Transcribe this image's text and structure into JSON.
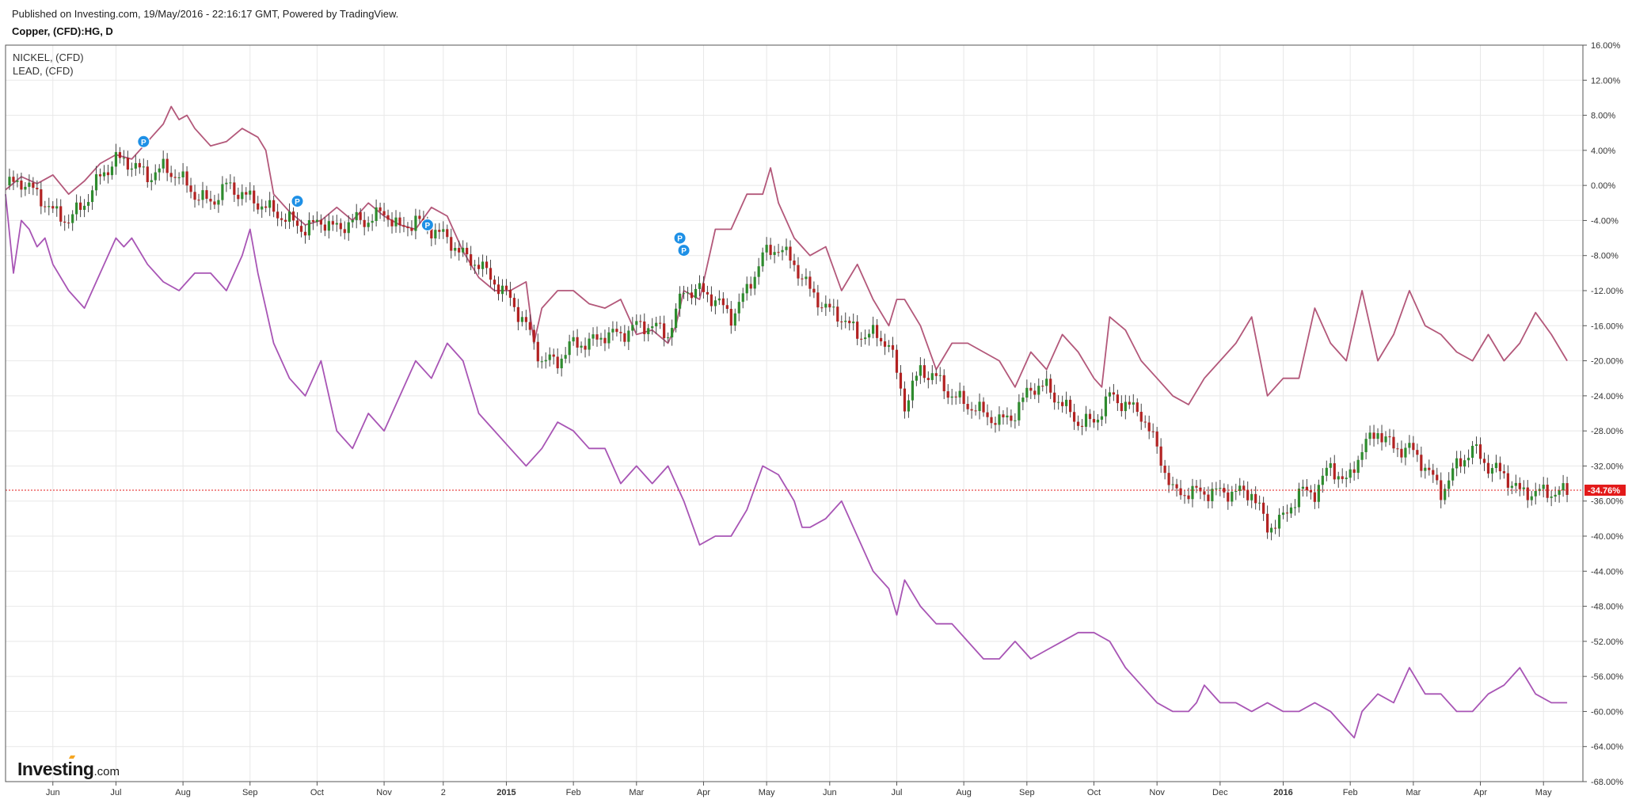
{
  "header": {
    "published": "Published on Investing.com, 19/May/2016 - 22:16:17 GMT, Powered by TradingView.",
    "symbol": "Copper, (CFD):HG, D"
  },
  "legend": [
    "NICKEL,  (CFD)",
    "LEAD,  (CFD)"
  ],
  "logo": {
    "main": "Investing",
    "suffix": ".com"
  },
  "colors": {
    "nickel": "#b3587a",
    "lead": "#a855b5",
    "candle_up": "#2e8b2e",
    "candle_down": "#b22222",
    "last_price": "#e31a1a",
    "grid": "#e8e8e8",
    "marker": "#1e90e6"
  },
  "chart_data": {
    "type": "line",
    "y_unit": "%",
    "ylim": [
      -68,
      16
    ],
    "y_ticks": [
      "16.00%",
      "12.00%",
      "8.00%",
      "4.00%",
      "0.00%",
      "-4.00%",
      "-8.00%",
      "-12.00%",
      "-16.00%",
      "-20.00%",
      "-24.00%",
      "-28.00%",
      "-32.00%",
      "-36.00%",
      "-40.00%",
      "-44.00%",
      "-48.00%",
      "-52.00%",
      "-56.00%",
      "-60.00%",
      "-64.00%",
      "-68.00%"
    ],
    "x_ticks": [
      {
        "label": "Jun",
        "t": 6,
        "bold": false
      },
      {
        "label": "Jul",
        "t": 14,
        "bold": false
      },
      {
        "label": "Aug",
        "t": 22.5,
        "bold": false
      },
      {
        "label": "Sep",
        "t": 31,
        "bold": false
      },
      {
        "label": "Oct",
        "t": 39.5,
        "bold": false
      },
      {
        "label": "Nov",
        "t": 48,
        "bold": false
      },
      {
        "label": "2",
        "t": 55.5,
        "bold": false
      },
      {
        "label": "2015",
        "t": 63.5,
        "bold": true
      },
      {
        "label": "Feb",
        "t": 72,
        "bold": false
      },
      {
        "label": "Mar",
        "t": 80,
        "bold": false
      },
      {
        "label": "Apr",
        "t": 88.5,
        "bold": false
      },
      {
        "label": "May",
        "t": 96.5,
        "bold": false
      },
      {
        "label": "Jun",
        "t": 104.5,
        "bold": false
      },
      {
        "label": "Jul",
        "t": 113,
        "bold": false
      },
      {
        "label": "Aug",
        "t": 121.5,
        "bold": false
      },
      {
        "label": "Sep",
        "t": 129.5,
        "bold": false
      },
      {
        "label": "Oct",
        "t": 138,
        "bold": false
      },
      {
        "label": "Nov",
        "t": 146,
        "bold": false
      },
      {
        "label": "Dec",
        "t": 154,
        "bold": false
      },
      {
        "label": "2016",
        "t": 162,
        "bold": true
      },
      {
        "label": "Feb",
        "t": 170.5,
        "bold": false
      },
      {
        "label": "Mar",
        "t": 178.5,
        "bold": false
      },
      {
        "label": "Apr",
        "t": 187,
        "bold": false
      },
      {
        "label": "May",
        "t": 195,
        "bold": false
      }
    ],
    "last_value": -34.76,
    "last_label": "-34.76%",
    "markers": [
      {
        "label": "P",
        "t": 17.5,
        "y": 5.0
      },
      {
        "label": "P",
        "t": 37,
        "y": -1.8
      },
      {
        "label": "P",
        "t": 53.5,
        "y": -4.5
      },
      {
        "label": "P",
        "t": 85.5,
        "y": -6.0
      },
      {
        "label": "P",
        "t": 86,
        "y": -7.4
      }
    ],
    "series": [
      {
        "name": "NICKEL,  (CFD)",
        "t": [
          0,
          2,
          4,
          6,
          8,
          10,
          12,
          14,
          16,
          18,
          20,
          21,
          22,
          23,
          24,
          26,
          28,
          30,
          32,
          33,
          34,
          36,
          38,
          40,
          42,
          44,
          46,
          48,
          50,
          52,
          54,
          56,
          58,
          60,
          62,
          64,
          66,
          67,
          68,
          70,
          72,
          74,
          76,
          78,
          80,
          82,
          84,
          85,
          86,
          88,
          90,
          92,
          94,
          96,
          97,
          98,
          100,
          102,
          104,
          106,
          108,
          110,
          112,
          113,
          114,
          116,
          118,
          120,
          122,
          124,
          126,
          128,
          130,
          132,
          134,
          136,
          138,
          139,
          140,
          142,
          144,
          146,
          148,
          150,
          152,
          154,
          156,
          158,
          160,
          162,
          164,
          166,
          168,
          170,
          172,
          174,
          176,
          178,
          180,
          182,
          184,
          186,
          188,
          190,
          192,
          194,
          196,
          198
        ],
        "v": [
          -0.5,
          1,
          0.2,
          1.2,
          -1,
          0.5,
          2.5,
          3.5,
          3,
          5,
          7,
          9,
          7.5,
          8,
          6.5,
          4.5,
          5,
          6.5,
          5.5,
          4,
          -1,
          -3,
          -4.5,
          -4,
          -2.5,
          -4,
          -2,
          -3.5,
          -4.5,
          -5,
          -2.5,
          -3.5,
          -7.5,
          -10.5,
          -12,
          -12,
          -11,
          -18,
          -14,
          -12,
          -12,
          -13.5,
          -14,
          -13,
          -17,
          -16.5,
          -18,
          -16,
          -12,
          -13,
          -5,
          -5,
          -1,
          -1,
          2,
          -2,
          -6,
          -8,
          -7,
          -12,
          -9,
          -13,
          -16,
          -13,
          -13,
          -16,
          -21,
          -18,
          -18,
          -19,
          -20,
          -23,
          -19,
          -21,
          -17,
          -19,
          -22,
          -23,
          -15,
          -16.5,
          -20,
          -22,
          -24,
          -25,
          -22,
          -20,
          -18,
          -15,
          -24,
          -22,
          -22,
          -14,
          -18,
          -20,
          -12,
          -20,
          -17,
          -12,
          -16,
          -17,
          -19,
          -20,
          -17,
          -20,
          -18,
          -14.5,
          -17,
          -20
        ]
      },
      {
        "name": "LEAD,  (CFD)",
        "t": [
          0,
          1,
          2,
          3,
          4,
          5,
          6,
          8,
          10,
          12,
          14,
          15,
          16,
          18,
          20,
          22,
          24,
          26,
          28,
          30,
          31,
          32,
          33,
          34,
          36,
          38,
          40,
          42,
          44,
          46,
          48,
          50,
          52,
          54,
          56,
          58,
          60,
          62,
          64,
          66,
          68,
          70,
          72,
          74,
          76,
          78,
          80,
          82,
          84,
          86,
          88,
          90,
          92,
          94,
          96,
          98,
          100,
          101,
          102,
          104,
          106,
          108,
          110,
          112,
          113,
          114,
          116,
          118,
          120,
          122,
          124,
          126,
          128,
          130,
          132,
          134,
          136,
          138,
          140,
          142,
          144,
          146,
          148,
          150,
          151,
          152,
          154,
          156,
          158,
          160,
          162,
          164,
          166,
          168,
          170,
          171,
          172,
          174,
          176,
          178,
          180,
          182,
          184,
          186,
          188,
          190,
          192,
          194,
          196,
          197,
          198
        ],
        "v": [
          -1,
          -10,
          -4,
          -5,
          -7,
          -6,
          -9,
          -12,
          -14,
          -10,
          -6,
          -7,
          -6,
          -9,
          -11,
          -12,
          -10,
          -10,
          -12,
          -8,
          -5,
          -10,
          -14,
          -18,
          -22,
          -24,
          -20,
          -28,
          -30,
          -26,
          -28,
          -24,
          -20,
          -22,
          -18,
          -20,
          -26,
          -28,
          -30,
          -32,
          -30,
          -27,
          -28,
          -30,
          -30,
          -34,
          -32,
          -34,
          -32,
          -36,
          -41,
          -40,
          -40,
          -37,
          -32,
          -33,
          -36,
          -39,
          -39,
          -38,
          -36,
          -40,
          -44,
          -46,
          -49,
          -45,
          -48,
          -50,
          -50,
          -52,
          -54,
          -54,
          -52,
          -54,
          -53,
          -52,
          -51,
          -51,
          -52,
          -55,
          -57,
          -59,
          -60,
          -60,
          -59,
          -57,
          -59,
          -59,
          -60,
          -59,
          -60,
          -60,
          -59,
          -60,
          -62,
          -63,
          -60,
          -58,
          -59,
          -55,
          -58,
          -58,
          -60,
          -60,
          -58,
          -57,
          -55,
          -58,
          -59,
          -59,
          -59
        ]
      },
      {
        "name": "Copper, (CFD):HG, D",
        "style": "candlestick",
        "t": [
          0,
          2,
          4,
          6,
          8,
          10,
          12,
          14,
          16,
          18,
          20,
          22,
          24,
          26,
          28,
          30,
          32,
          34,
          36,
          38,
          40,
          42,
          44,
          46,
          48,
          50,
          52,
          54,
          56,
          58,
          60,
          62,
          64,
          66,
          68,
          70,
          72,
          74,
          76,
          78,
          80,
          82,
          84,
          86,
          88,
          90,
          92,
          94,
          96,
          98,
          100,
          102,
          104,
          106,
          108,
          110,
          112,
          114,
          116,
          118,
          120,
          122,
          124,
          126,
          128,
          130,
          132,
          134,
          136,
          138,
          140,
          142,
          144,
          146,
          148,
          150,
          152,
          154,
          156,
          158,
          160,
          162,
          164,
          166,
          168,
          170,
          172,
          174,
          176,
          178,
          180,
          182,
          184,
          186,
          188,
          190,
          192,
          194,
          196,
          198
        ],
        "v": [
          0,
          0.5,
          -1,
          -3,
          -4,
          -2,
          1,
          3,
          2.5,
          1,
          2,
          1,
          -1,
          -2,
          0,
          -1,
          -2,
          -3,
          -4,
          -5,
          -4,
          -5,
          -4,
          -4,
          -3,
          -5,
          -4,
          -5,
          -6,
          -8,
          -9,
          -11,
          -13,
          -16,
          -20,
          -20,
          -18,
          -18,
          -17,
          -17,
          -16,
          -16,
          -17,
          -12,
          -12,
          -13,
          -15,
          -12,
          -8,
          -7,
          -9,
          -12,
          -14,
          -15,
          -17,
          -17,
          -18,
          -25,
          -21,
          -22,
          -24,
          -25,
          -26,
          -27,
          -26,
          -23,
          -23,
          -25,
          -27,
          -27,
          -24,
          -25,
          -26,
          -30,
          -35,
          -35,
          -35,
          -35,
          -35,
          -35,
          -39,
          -38,
          -35,
          -35,
          -32,
          -34,
          -30,
          -28,
          -30,
          -30,
          -32,
          -35,
          -32,
          -30,
          -32,
          -33,
          -35,
          -35,
          -35,
          -35
        ]
      }
    ]
  }
}
